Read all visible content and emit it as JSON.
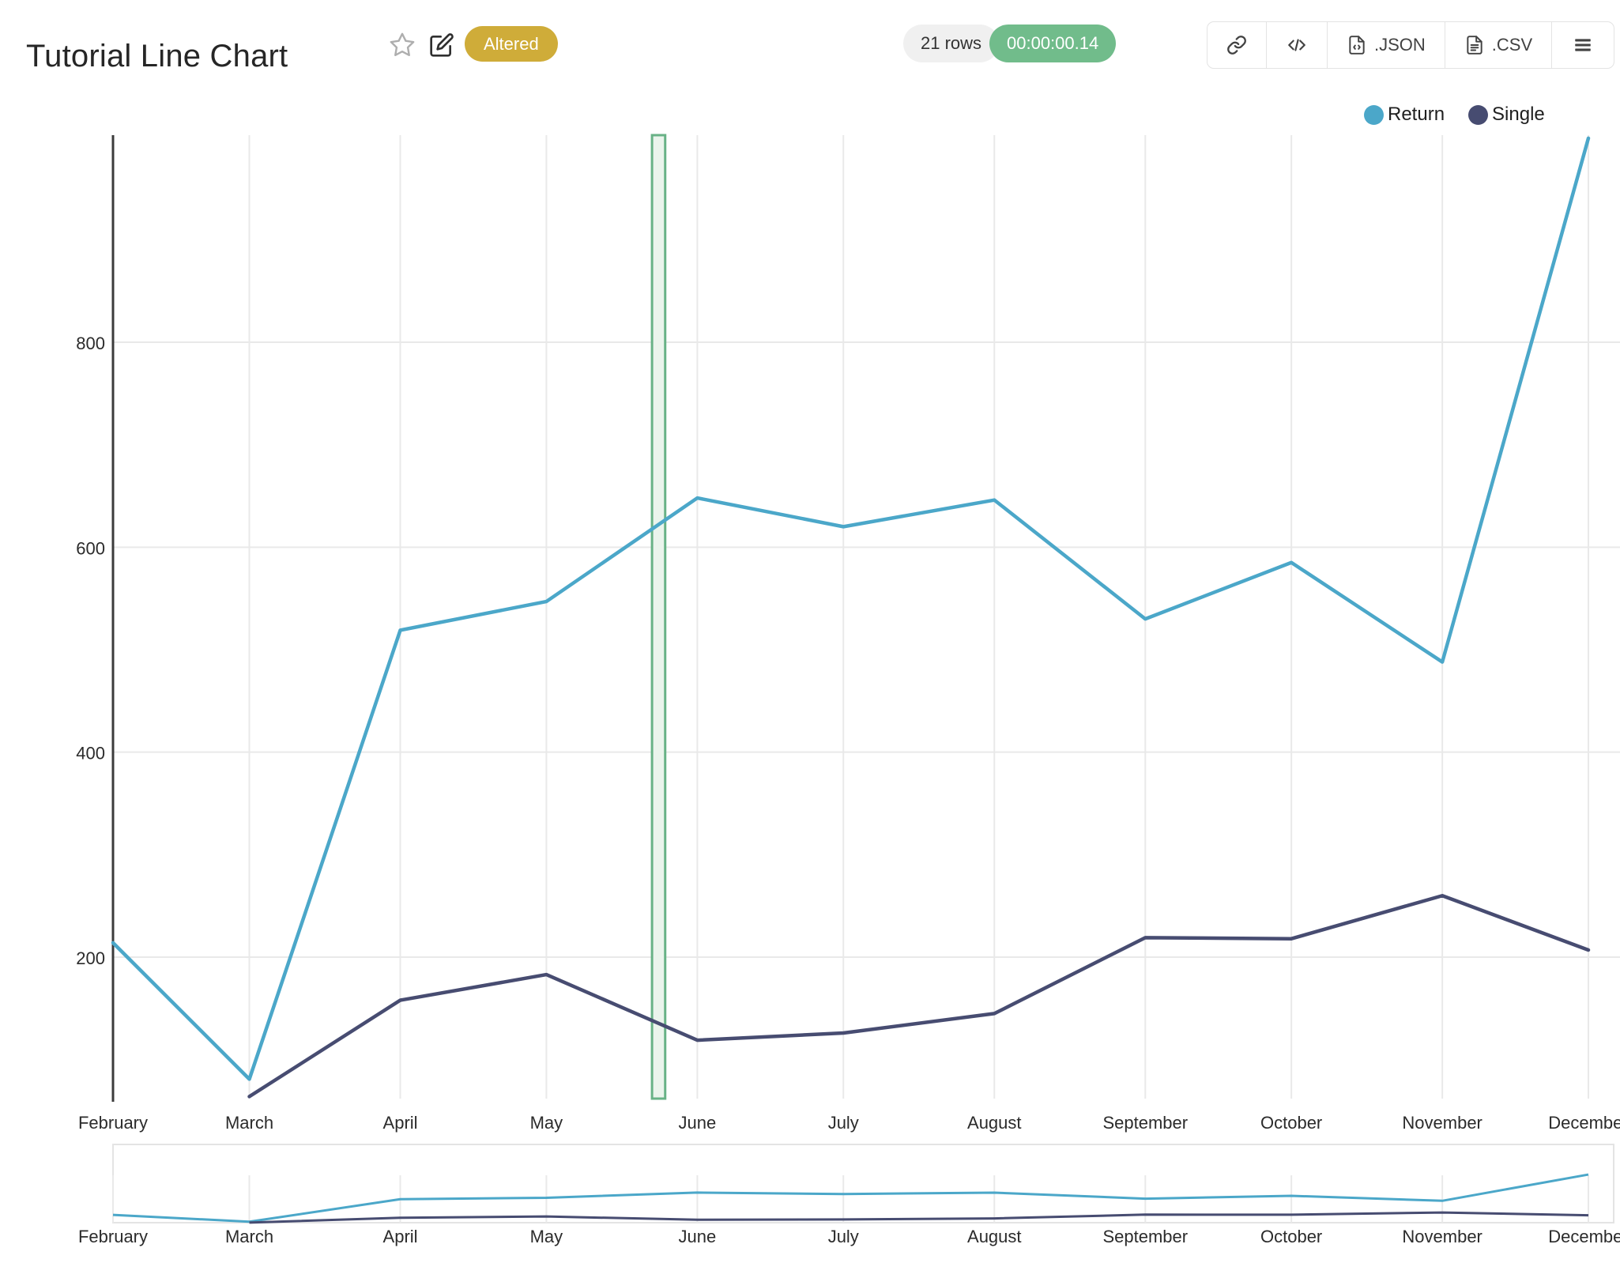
{
  "header": {
    "title": "Tutorial Line Chart",
    "badge": "Altered"
  },
  "toolbar": {
    "row_count": "21 rows",
    "execution_time": "00:00:00.14",
    "json_label": ".JSON",
    "csv_label": ".CSV"
  },
  "icons": {
    "favorite": "star-outline",
    "edit": "pencil-square",
    "share": "link",
    "embed": "code",
    "json_file": "file-code",
    "csv_file": "file-text",
    "menu": "hamburger"
  },
  "colors": {
    "badge_gold": "#CFAC39",
    "timer_green": "#71BC8B",
    "pill_gray": "#F0F0F0",
    "grid": "#E9E9E9",
    "axis": "#3B3B3B",
    "return_line": "#4BA7C9",
    "single_line": "#474C71",
    "band_fill": "#EAF4EC",
    "band_border": "#68B286"
  },
  "chart_data": {
    "type": "line",
    "title": "Tutorial Line Chart",
    "xlabel": "",
    "ylabel": "",
    "categories": [
      "February",
      "March",
      "April",
      "May",
      "June",
      "July",
      "August",
      "September",
      "October",
      "November",
      "December"
    ],
    "x_days": [
      0,
      28,
      59,
      89,
      120,
      150,
      181,
      212,
      242,
      273,
      303
    ],
    "series": [
      {
        "name": "Return",
        "color": "#4BA7C9",
        "values": [
          214,
          81,
          519,
          547,
          648,
          620,
          646,
          530,
          585,
          488,
          999
        ]
      },
      {
        "name": "Single",
        "color": "#474C71",
        "values": [
          null,
          64,
          158,
          183,
          119,
          126,
          145,
          219,
          218,
          260,
          207
        ]
      }
    ],
    "ylim": [
      62,
      1002
    ],
    "yticks": [
      200,
      400,
      600,
      800
    ],
    "grid": true,
    "legend_position": "top-right",
    "annotation_band": {
      "x_start_day": 110.7,
      "x_end_day": 113.4,
      "fill": "#EAF4EC",
      "border": "#68B286"
    },
    "rangeslider": true
  }
}
